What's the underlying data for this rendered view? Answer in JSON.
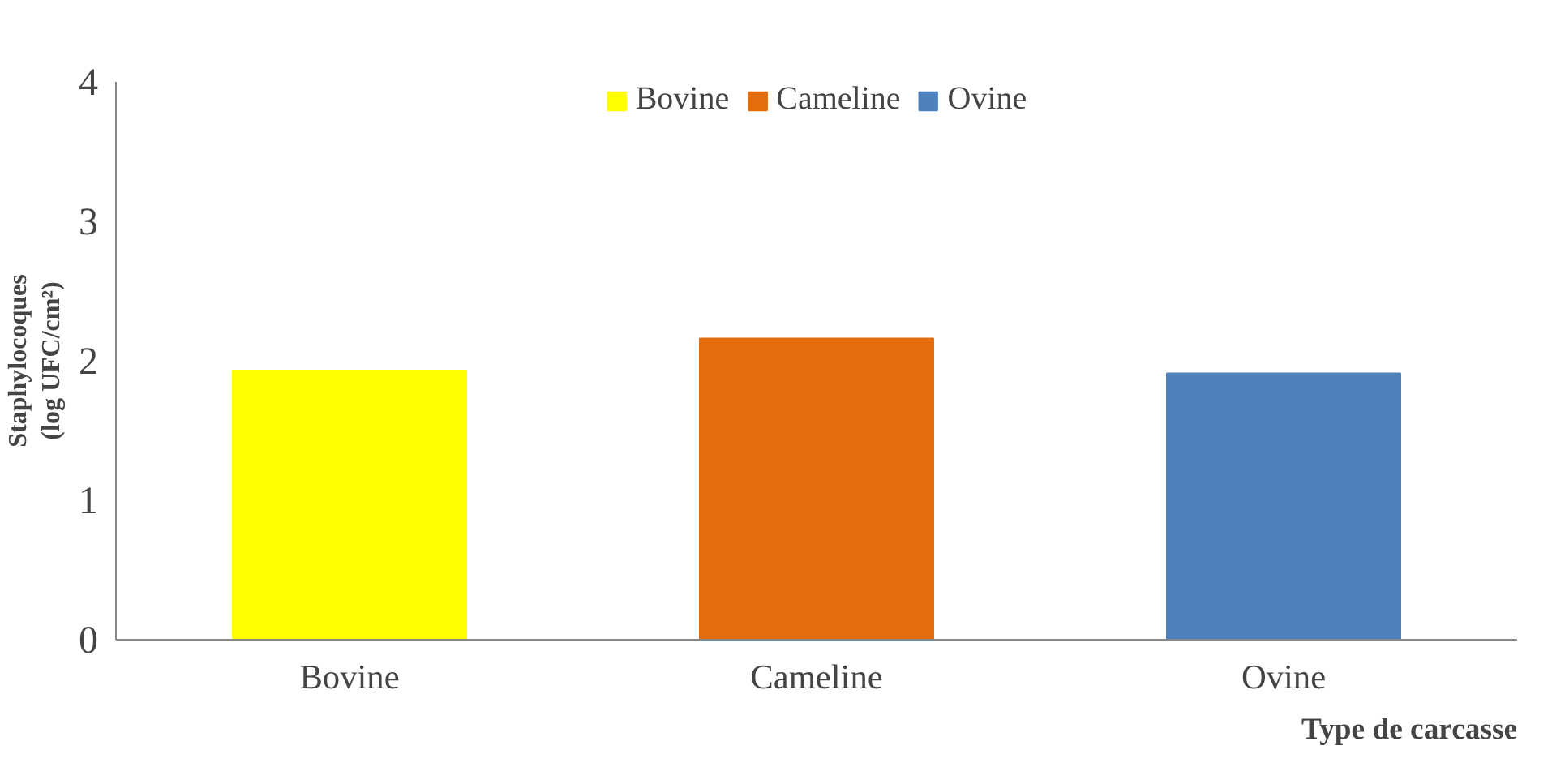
{
  "chart_data": {
    "type": "bar",
    "xlabel": "Type de carcasse",
    "ylabel": "Staphylocoques\n(log UFC/cm²)",
    "categories": [
      "Bovine",
      "Cameline",
      "Ovine"
    ],
    "series": [
      {
        "name": "Bovine",
        "color": "#ffff00",
        "values": [
          1.93,
          null,
          null
        ]
      },
      {
        "name": "Cameline",
        "color": "#e46c0a",
        "values": [
          null,
          2.16,
          null
        ]
      },
      {
        "name": "Ovine",
        "color": "#4f81bd",
        "values": [
          null,
          null,
          1.91
        ]
      }
    ],
    "ylim": [
      0,
      4
    ],
    "yticks": [
      0,
      1,
      2,
      3,
      4
    ],
    "grid": false,
    "legend": "top"
  }
}
